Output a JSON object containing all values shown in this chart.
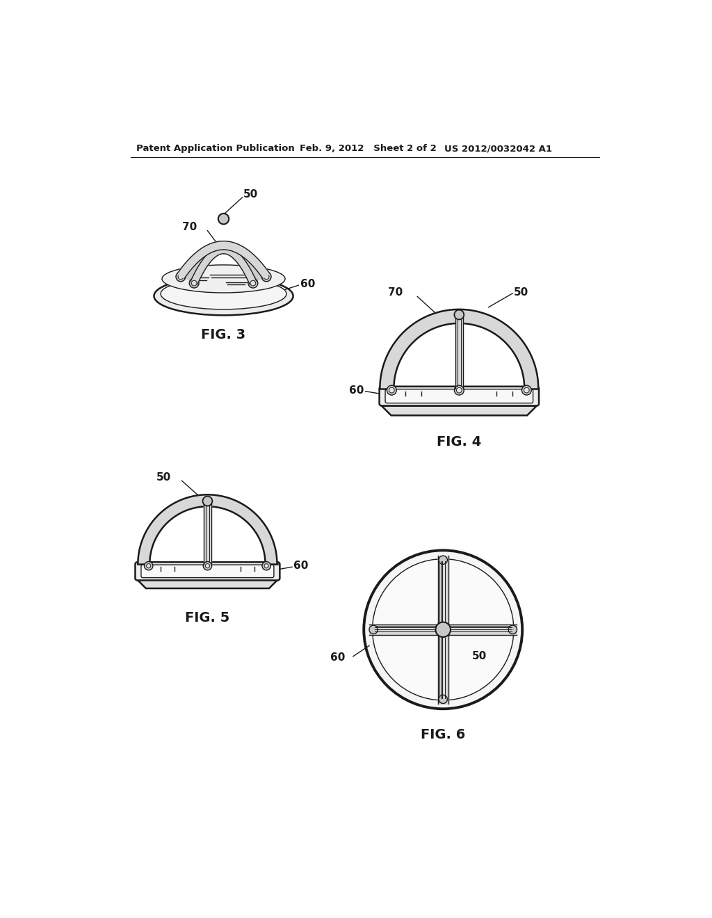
{
  "bg_color": "#ffffff",
  "line_color": "#1a1a1a",
  "gray_fill": "#e8e8e8",
  "gray_dark": "#c8c8c8",
  "gray_mid": "#d8d8d8",
  "gray_light": "#f0f0f0",
  "header_left": "Patent Application Publication",
  "header_mid": "Feb. 9, 2012   Sheet 2 of 2",
  "header_right": "US 2012/0032042 A1",
  "fig3_label": "FIG. 3",
  "fig4_label": "FIG. 4",
  "fig5_label": "FIG. 5",
  "fig6_label": "FIG. 6",
  "label_50": "50",
  "label_60": "60",
  "label_70": "70"
}
